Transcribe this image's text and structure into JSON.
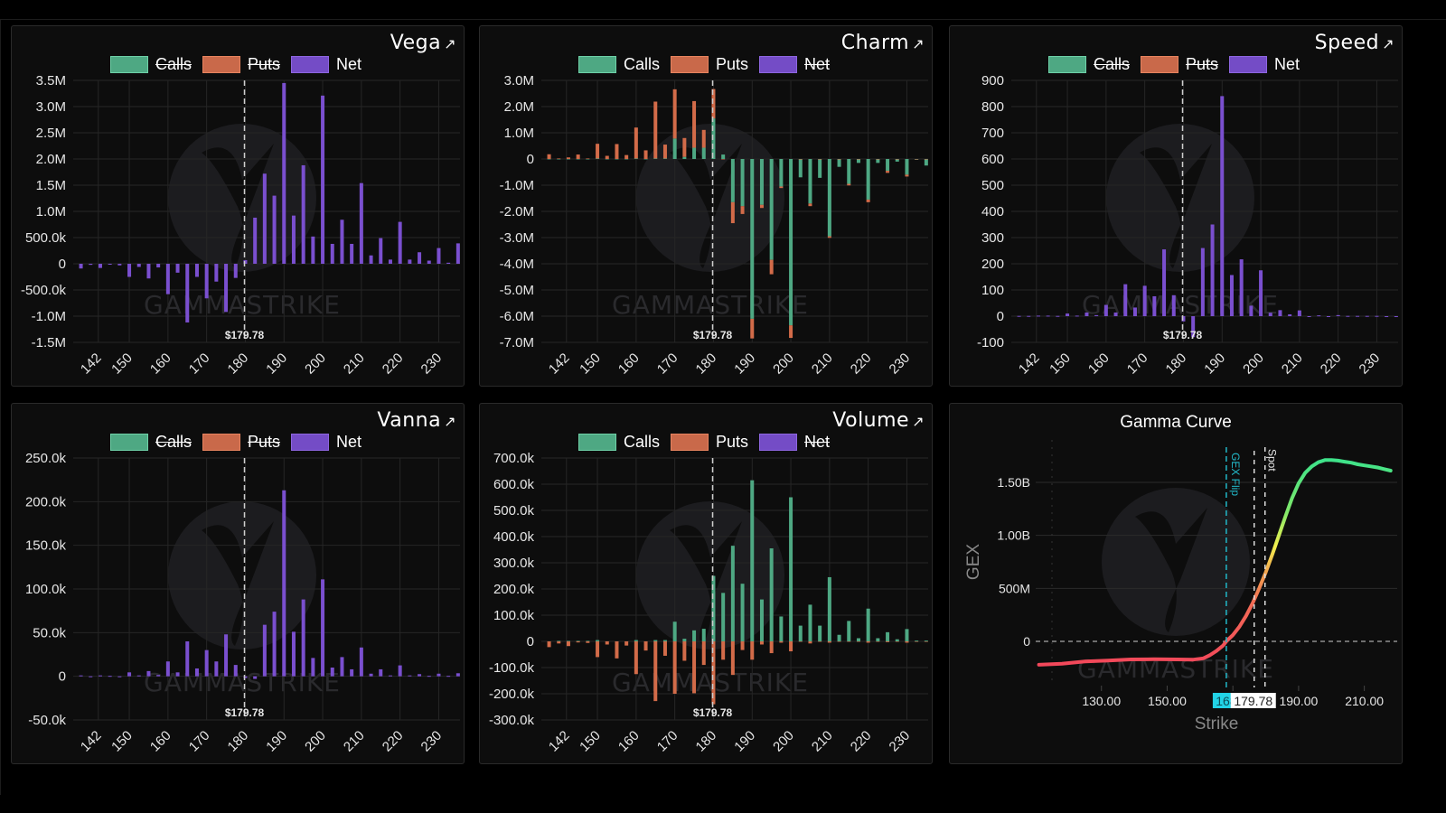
{
  "colors": {
    "calls": "#4ea883",
    "puts": "#d26b49",
    "net": "#7a4fcf",
    "grid": "#262626",
    "spot_line": "#cfcfcf",
    "gex_flip": "#22b8c8",
    "panel_bg": "#0d0d0d"
  },
  "legend_labels": {
    "calls": "Calls",
    "puts": "Puts",
    "net": "Net"
  },
  "expand_icon": "↗",
  "spot_label": "$179.78",
  "chart_data": [
    {
      "id": "vega",
      "title": "Vega",
      "type": "bar",
      "mode": "net",
      "hidden_series": [
        "Calls",
        "Puts"
      ],
      "x_ticks": [
        142,
        150,
        160,
        170,
        180,
        190,
        200,
        210,
        220,
        230
      ],
      "x_range": [
        135.5,
        235.5
      ],
      "spot": 179.78,
      "y_ticks": [
        3500000,
        3000000,
        2500000,
        2000000,
        1500000,
        1000000,
        500000,
        0,
        -500000,
        -1000000,
        -1500000
      ],
      "y_tick_labels": [
        "3.5M",
        "3.0M",
        "2.5M",
        "2.0M",
        "1.5M",
        "1.0M",
        "500.0k",
        "0",
        "-500.0k",
        "-1.0M",
        "-1.5M"
      ],
      "ylim": [
        -1500000,
        3500000
      ],
      "strikes": [
        137.5,
        140,
        142.5,
        145,
        147.5,
        150,
        152.5,
        155,
        157.5,
        160,
        162.5,
        165,
        167.5,
        170,
        172.5,
        175,
        177.5,
        180,
        182.5,
        185,
        187.5,
        190,
        192.5,
        195,
        197.5,
        200,
        202.5,
        205,
        207.5,
        210,
        212.5,
        215,
        217.5,
        220,
        222.5,
        225,
        227.5,
        230,
        232.5,
        235
      ],
      "series": [
        {
          "name": "Net",
          "values": [
            -90000,
            -20000,
            -80000,
            -10000,
            -30000,
            -250000,
            -60000,
            -280000,
            -70000,
            -580000,
            -170000,
            -1120000,
            -250000,
            -660000,
            -340000,
            -920000,
            -270000,
            70000,
            880000,
            1720000,
            1300000,
            3450000,
            920000,
            1880000,
            520000,
            3210000,
            380000,
            840000,
            380000,
            1540000,
            160000,
            490000,
            80000,
            800000,
            80000,
            220000,
            60000,
            300000,
            20000,
            390000
          ]
        }
      ]
    },
    {
      "id": "charm",
      "title": "Charm",
      "type": "bar",
      "mode": "stacked",
      "hidden_series": [
        "Net"
      ],
      "x_ticks": [
        142,
        150,
        160,
        170,
        180,
        190,
        200,
        210,
        220,
        230
      ],
      "x_range": [
        135.5,
        235.5
      ],
      "spot": 179.78,
      "y_ticks": [
        3000000,
        2000000,
        1000000,
        0,
        -1000000,
        -2000000,
        -3000000,
        -4000000,
        -5000000,
        -6000000,
        -7000000
      ],
      "y_tick_labels": [
        "3.0M",
        "2.0M",
        "1.0M",
        "0",
        "-1.0M",
        "-2.0M",
        "-3.0M",
        "-4.0M",
        "-5.0M",
        "-6.0M",
        "-7.0M"
      ],
      "ylim": [
        -7000000,
        3000000
      ],
      "strikes": [
        137.5,
        140,
        142.5,
        145,
        147.5,
        150,
        152.5,
        155,
        157.5,
        160,
        162.5,
        165,
        167.5,
        170,
        172.5,
        175,
        177.5,
        180,
        182.5,
        185,
        187.5,
        190,
        192.5,
        195,
        197.5,
        200,
        202.5,
        205,
        207.5,
        210,
        212.5,
        215,
        217.5,
        220,
        222.5,
        225,
        227.5,
        230,
        232.5,
        235
      ],
      "series": [
        {
          "name": "Calls",
          "values": [
            0,
            0,
            0,
            0,
            0,
            20000,
            0,
            0,
            0,
            20000,
            0,
            20000,
            20000,
            780000,
            80000,
            430000,
            430000,
            1550000,
            170000,
            -1650000,
            -1800000,
            -6100000,
            -1750000,
            -3850000,
            -1050000,
            -6350000,
            -700000,
            -1700000,
            -720000,
            -2950000,
            -300000,
            -950000,
            -150000,
            -1550000,
            -150000,
            -450000,
            -100000,
            -600000,
            -30000,
            -250000
          ]
        },
        {
          "name": "Puts",
          "values": [
            180000,
            20000,
            60000,
            170000,
            20000,
            560000,
            120000,
            570000,
            150000,
            1180000,
            330000,
            2170000,
            530000,
            1880000,
            720000,
            1780000,
            680000,
            1120000,
            0,
            -800000,
            -300000,
            -750000,
            -120000,
            -550000,
            -60000,
            -480000,
            0,
            -100000,
            0,
            -60000,
            0,
            -60000,
            0,
            -100000,
            0,
            -80000,
            0,
            -70000,
            0,
            0
          ]
        }
      ]
    },
    {
      "id": "speed",
      "title": "Speed",
      "type": "bar",
      "mode": "net",
      "hidden_series": [
        "Calls",
        "Puts"
      ],
      "x_ticks": [
        142,
        150,
        160,
        170,
        180,
        190,
        200,
        210,
        220,
        230
      ],
      "x_range": [
        135.5,
        235.5
      ],
      "spot": 179.78,
      "y_ticks": [
        900,
        800,
        700,
        600,
        500,
        400,
        300,
        200,
        100,
        0,
        -100
      ],
      "y_tick_labels": [
        "900",
        "800",
        "700",
        "600",
        "500",
        "400",
        "300",
        "200",
        "100",
        "0",
        "-100"
      ],
      "ylim": [
        -100,
        900
      ],
      "strikes": [
        137.5,
        140,
        142.5,
        145,
        147.5,
        150,
        152.5,
        155,
        157.5,
        160,
        162.5,
        165,
        167.5,
        170,
        172.5,
        175,
        177.5,
        180,
        182.5,
        185,
        187.5,
        190,
        192.5,
        195,
        197.5,
        200,
        202.5,
        205,
        207.5,
        210,
        212.5,
        215,
        217.5,
        220,
        222.5,
        225,
        227.5,
        230,
        232.5,
        235
      ],
      "series": [
        {
          "name": "Net",
          "values": [
            1,
            1,
            2,
            2,
            1,
            10,
            2,
            14,
            4,
            43,
            14,
            122,
            33,
            116,
            76,
            255,
            80,
            -20,
            -80,
            260,
            350,
            840,
            157,
            217,
            40,
            175,
            13,
            23,
            7,
            22,
            0,
            3,
            0,
            4,
            1,
            1,
            1,
            1,
            0,
            0
          ]
        }
      ]
    },
    {
      "id": "vanna",
      "title": "Vanna",
      "type": "bar",
      "mode": "net",
      "hidden_series": [
        "Calls",
        "Puts"
      ],
      "x_ticks": [
        142,
        150,
        160,
        170,
        180,
        190,
        200,
        210,
        220,
        230
      ],
      "x_range": [
        135.5,
        235.5
      ],
      "spot": 179.78,
      "y_ticks": [
        250000,
        200000,
        150000,
        100000,
        50000,
        0,
        -50000
      ],
      "y_tick_labels": [
        "250.0k",
        "200.0k",
        "150.0k",
        "100.0k",
        "50.0k",
        "0",
        "-50.0k"
      ],
      "ylim": [
        -50000,
        250000
      ],
      "strikes": [
        137.5,
        140,
        142.5,
        145,
        147.5,
        150,
        152.5,
        155,
        157.5,
        160,
        162.5,
        165,
        167.5,
        170,
        172.5,
        175,
        177.5,
        180,
        182.5,
        185,
        187.5,
        190,
        192.5,
        195,
        197.5,
        200,
        202.5,
        205,
        207.5,
        210,
        212.5,
        215,
        217.5,
        220,
        222.5,
        225,
        227.5,
        230,
        232.5,
        235
      ],
      "series": [
        {
          "name": "Net",
          "values": [
            1000,
            0,
            1000,
            500,
            0,
            4500,
            1000,
            6000,
            1500,
            17000,
            4500,
            40000,
            9000,
            30000,
            17000,
            48000,
            13000,
            -2000,
            -3000,
            59000,
            74000,
            213000,
            51000,
            88000,
            21000,
            111000,
            10000,
            22000,
            8000,
            33000,
            3000,
            8000,
            1000,
            12500,
            1000,
            2500,
            500,
            3000,
            500,
            3500
          ]
        }
      ]
    },
    {
      "id": "volume",
      "title": "Volume",
      "type": "bar",
      "mode": "stacked",
      "hidden_series": [
        "Net"
      ],
      "x_ticks": [
        142,
        150,
        160,
        170,
        180,
        190,
        200,
        210,
        220,
        230
      ],
      "x_range": [
        135.5,
        235.5
      ],
      "spot": 179.78,
      "y_ticks": [
        700000,
        600000,
        500000,
        400000,
        300000,
        200000,
        100000,
        0,
        -100000,
        -200000,
        -300000
      ],
      "y_tick_labels": [
        "700.0k",
        "600.0k",
        "500.0k",
        "400.0k",
        "300.0k",
        "200.0k",
        "100.0k",
        "0",
        "-100.0k",
        "-200.0k",
        "-300.0k"
      ],
      "ylim": [
        -300000,
        700000
      ],
      "strikes": [
        137.5,
        140,
        142.5,
        145,
        147.5,
        150,
        152.5,
        155,
        157.5,
        160,
        162.5,
        165,
        167.5,
        170,
        172.5,
        175,
        177.5,
        180,
        182.5,
        185,
        187.5,
        190,
        192.5,
        195,
        197.5,
        200,
        202.5,
        205,
        207.5,
        210,
        212.5,
        215,
        217.5,
        220,
        222.5,
        225,
        227.5,
        230,
        232.5,
        235
      ],
      "series": [
        {
          "name": "Calls",
          "values": [
            0,
            2000,
            2000,
            2000,
            2000,
            5000,
            0,
            0,
            0,
            5000,
            0,
            5000,
            5000,
            75000,
            10000,
            42000,
            48000,
            250000,
            185000,
            365000,
            220000,
            615000,
            160000,
            355000,
            95000,
            550000,
            60000,
            140000,
            60000,
            245000,
            25000,
            78000,
            12000,
            125000,
            12000,
            35000,
            8000,
            47000,
            3000,
            3000
          ]
        },
        {
          "name": "Puts",
          "values": [
            -22000,
            -8000,
            -18000,
            -4000,
            -6000,
            -60000,
            -12000,
            -65000,
            -16000,
            -125000,
            -35000,
            -228000,
            -55000,
            -200000,
            -74000,
            -198000,
            -90000,
            -240000,
            -70000,
            -128000,
            -33000,
            -70000,
            -12000,
            -45000,
            -5000,
            -38000,
            0,
            -8000,
            0,
            -5000,
            0,
            0,
            0,
            -5000,
            0,
            -3000,
            0,
            -5000,
            0,
            0
          ]
        }
      ]
    },
    {
      "id": "gamma",
      "title": "Gamma Curve",
      "type": "line",
      "xlabel": "Strike",
      "ylabel": "GEX",
      "x_ticks": [
        130,
        150,
        170,
        190,
        210
      ],
      "x_tick_labels": [
        "130.00",
        "150.00",
        "170.00",
        "190.00",
        "210.00"
      ],
      "x_range": [
        110,
        220
      ],
      "y_ticks": [
        1500000000,
        1000000000,
        500000000,
        0
      ],
      "y_tick_labels": [
        "1.50B",
        "1.00B",
        "500M",
        "0"
      ],
      "ylim": [
        -400000000,
        1900000000
      ],
      "gex_flip": 168,
      "gex_flip_label": "GEX Flip",
      "gex_flip_badge": "168",
      "spot": 179.78,
      "spot_label": "Spot",
      "spot_badge": "179.78",
      "x": [
        111,
        118,
        125,
        132,
        139,
        146,
        153,
        158,
        161,
        163,
        165,
        167,
        168,
        170,
        172,
        174,
        176,
        178,
        180,
        182,
        184,
        186,
        188,
        190,
        192,
        194,
        196,
        198,
        200,
        202,
        204,
        206,
        208,
        210,
        212,
        214,
        216,
        218
      ],
      "y": [
        -220000000,
        -210000000,
        -190000000,
        -180000000,
        -170000000,
        -168000000,
        -170000000,
        -172000000,
        -160000000,
        -130000000,
        -90000000,
        -40000000,
        0,
        60000000,
        140000000,
        240000000,
        360000000,
        500000000,
        650000000,
        820000000,
        1000000000,
        1180000000,
        1350000000,
        1490000000,
        1590000000,
        1650000000,
        1690000000,
        1710000000,
        1710000000,
        1705000000,
        1695000000,
        1685000000,
        1670000000,
        1660000000,
        1650000000,
        1640000000,
        1625000000,
        1610000000
      ]
    }
  ]
}
